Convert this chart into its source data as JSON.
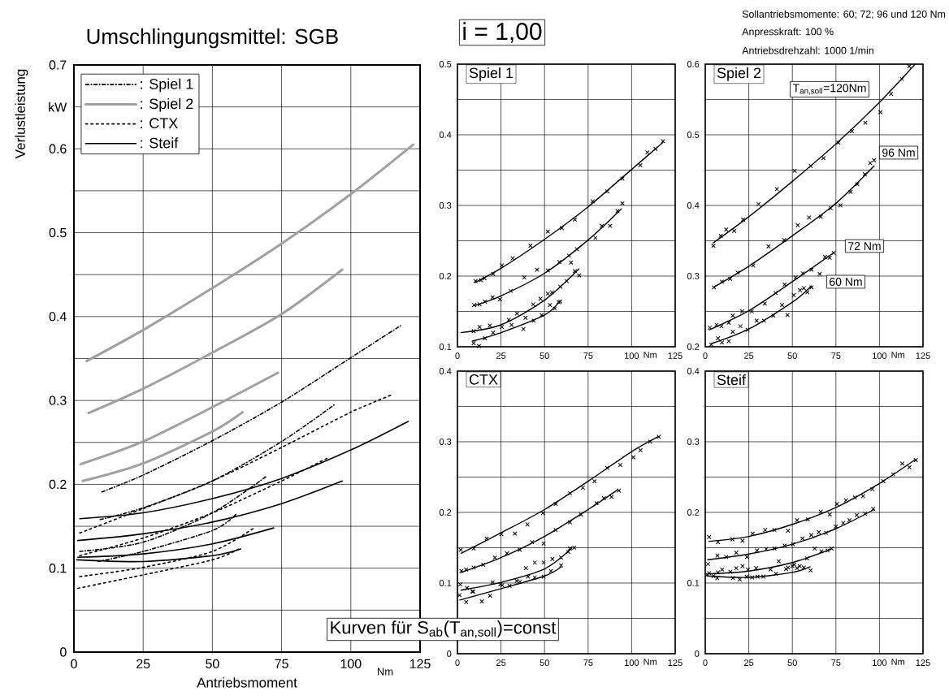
{
  "chart_data": [
    {
      "type": "line",
      "title": "Umschlingungsmittel: SGB",
      "xlabel": "Antriebsmoment",
      "ylabel": "Verlustleistung",
      "xlim": [
        0,
        125
      ],
      "xticks": [
        0,
        25,
        50,
        75,
        100,
        125
      ],
      "ylim": [
        0,
        0.7
      ],
      "yticks": [
        0,
        {
          "value": 0.05,
          "label": null
        },
        0.1,
        {
          "value": 0.15,
          "label": null
        },
        0.2,
        {
          "value": 0.25,
          "label": null
        },
        0.3,
        {
          "value": 0.35,
          "label": null
        },
        0.4,
        {
          "value": 0.45,
          "label": null
        },
        0.5,
        {
          "value": 0.55,
          "label": null
        },
        0.6,
        {
          "value": 0.65,
          "label": "kW"
        },
        0.7
      ],
      "grid": true,
      "legend": "top left",
      "annotations": [
        "i = 1,00",
        "Sollantriebsmomente: 60; 72; 96 und 120 Nm",
        "Anpresskraft: 100 %",
        "Antriebsdrehzahl: 1000 1/min",
        "Kurven für S$_{ab}$(T$_{an,soll}$)=const",
        "Nm"
      ],
      "series": [
        {
          "name": ": Spiel 1",
          "color": "#000000",
          "line_style": "dashdot",
          "x": [
            10.1,
            25,
            50,
            75,
            100,
            117.9
          ],
          "values": [
            0.191,
            0.211,
            0.252,
            0.298,
            0.351,
            0.389
          ]
        },
        {
          "color": "#000000",
          "line_style": "dashdot",
          "x": [
            9.5,
            25,
            50,
            75,
            94.1
          ],
          "values": [
            0.158,
            0.172,
            0.204,
            0.251,
            0.295
          ]
        },
        {
          "color": "#000000",
          "line_style": "dashdot",
          "x": [
            2.1,
            25,
            50,
            69.7
          ],
          "values": [
            0.12,
            0.131,
            0.166,
            0.21
          ]
        },
        {
          "color": "#000000",
          "line_style": "dashdot",
          "x": [
            8.7,
            25,
            50,
            58.5
          ],
          "values": [
            0.108,
            0.12,
            0.145,
            0.164
          ]
        },
        {
          "name": ": Spiel 2",
          "color": "#a0a0a0",
          "line_style": "solid",
          "x": [
            4.6,
            25,
            50,
            75,
            100,
            122.5
          ],
          "values": [
            0.347,
            0.384,
            0.434,
            0.487,
            0.546,
            0.605
          ]
        },
        {
          "color": "#a0a0a0",
          "line_style": "solid",
          "x": [
            5.3,
            25,
            50,
            75,
            96.9
          ],
          "values": [
            0.285,
            0.314,
            0.357,
            0.403,
            0.456
          ]
        },
        {
          "color": "#a0a0a0",
          "line_style": "solid",
          "x": [
            2.4,
            25,
            50,
            73.7
          ],
          "values": [
            0.224,
            0.251,
            0.292,
            0.333
          ]
        },
        {
          "color": "#a0a0a0",
          "line_style": "solid",
          "x": [
            3.2,
            25,
            50,
            60.9
          ],
          "values": [
            0.204,
            0.225,
            0.263,
            0.286
          ]
        },
        {
          "name": ": CTX",
          "color": "#000000",
          "line_style": "dotted",
          "x": [
            2.1,
            25,
            50,
            75,
            100,
            115
          ],
          "values": [
            0.142,
            0.171,
            0.204,
            0.244,
            0.286,
            0.307
          ]
        },
        {
          "color": "#000000",
          "line_style": "dotted",
          "x": [
            2.1,
            25,
            50,
            75,
            92
          ],
          "values": [
            0.115,
            0.136,
            0.166,
            0.204,
            0.232
          ]
        },
        {
          "color": "#000000",
          "line_style": "dotted",
          "x": [
            2.1,
            25,
            50,
            65.5
          ],
          "values": [
            0.09,
            0.101,
            0.12,
            0.149
          ]
        },
        {
          "color": "#000000",
          "line_style": "dotted",
          "x": [
            1.4,
            25,
            50,
            59.7
          ],
          "values": [
            0.076,
            0.092,
            0.11,
            0.123
          ]
        },
        {
          "name": ": Steif",
          "color": "#000000",
          "line_style": "solid",
          "x": [
            2.1,
            25,
            50,
            75,
            100,
            120.7
          ],
          "values": [
            0.159,
            0.166,
            0.183,
            0.207,
            0.241,
            0.275
          ]
        },
        {
          "color": "#000000",
          "line_style": "solid",
          "x": [
            1.4,
            25,
            50,
            75,
            96.9
          ],
          "values": [
            0.133,
            0.141,
            0.155,
            0.177,
            0.204
          ]
        },
        {
          "color": "#000000",
          "line_style": "solid",
          "x": [
            1.4,
            25,
            50,
            72.1
          ],
          "values": [
            0.113,
            0.117,
            0.129,
            0.148
          ]
        },
        {
          "color": "#000000",
          "line_style": "solid",
          "x": [
            1,
            25,
            50,
            60.2
          ],
          "values": [
            0.11,
            0.108,
            0.115,
            0.123
          ]
        }
      ]
    },
    {
      "type": "line",
      "title": "Spiel 1",
      "xlim": [
        0,
        125
      ],
      "xticks": [
        0,
        25,
        50,
        75,
        100,
        125
      ],
      "ylim": [
        0.1,
        0.5
      ],
      "yticks": [
        0.1,
        {
          "value": 0.15,
          "label": null
        },
        0.2,
        {
          "value": 0.25,
          "label": null
        },
        0.3,
        {
          "value": 0.35,
          "label": null
        },
        0.4,
        {
          "value": 0.45,
          "label": null
        },
        0.5
      ],
      "grid": true,
      "annotations": [
        "Nm"
      ],
      "series": [
        {
          "color": "#000000",
          "line_style": "solid",
          "x": [
            10.1,
            25,
            50,
            75,
            100,
            117.9
          ],
          "values": [
            0.191,
            0.211,
            0.252,
            0.298,
            0.351,
            0.389
          ]
        },
        {
          "color": "#000000",
          "line_style": "solid",
          "x": [
            9.5,
            25,
            50,
            75,
            94.1
          ],
          "values": [
            0.158,
            0.172,
            0.204,
            0.251,
            0.295
          ]
        },
        {
          "color": "#000000",
          "line_style": "solid",
          "x": [
            2.1,
            25,
            50,
            69.7
          ],
          "values": [
            0.12,
            0.131,
            0.166,
            0.21
          ]
        },
        {
          "color": "#000000",
          "line_style": "solid",
          "x": [
            8.7,
            25,
            50,
            58.5
          ],
          "values": [
            0.108,
            0.12,
            0.145,
            0.164
          ]
        },
        {
          "type": "scatter",
          "marker": "cross",
          "color": "#000000",
          "x": [
            10.4,
            13.5,
            15.5,
            20.5,
            25.5,
            31.7,
            41.9,
            51.9,
            59.9,
            67.4,
            77.6,
            86,
            94.7,
            105,
            109,
            113.7,
            118
          ],
          "values": [
            0.193,
            0.194,
            0.197,
            0.203,
            0.215,
            0.225,
            0.243,
            0.263,
            0.268,
            0.28,
            0.306,
            0.32,
            0.338,
            0.357,
            0.375,
            0.38,
            0.391
          ]
        },
        {
          "type": "scatter",
          "marker": "cross",
          "color": "#000000",
          "x": [
            9.6,
            12.7,
            15.8,
            20.2,
            24.4,
            30.6,
            38.4,
            45.7,
            51.9,
            58.5,
            64,
            65.2,
            68.6,
            79.2,
            82.9,
            87.6,
            91.9,
            94.7
          ],
          "values": [
            0.159,
            0.16,
            0.164,
            0.17,
            0.167,
            0.179,
            0.198,
            0.209,
            0.208,
            0.22,
            0.229,
            0.219,
            0.238,
            0.254,
            0.271,
            0.271,
            0.292,
            0.303
          ]
        },
        {
          "type": "scatter",
          "marker": "cross",
          "color": "#000000",
          "x": [
            9.3,
            12.7,
            18.6,
            25.5,
            29.5,
            34.2,
            43.5,
            47.7,
            51.9,
            54.3,
            59,
            62.7,
            67.4,
            69.9
          ],
          "values": [
            0.122,
            0.128,
            0.13,
            0.128,
            0.138,
            0.147,
            0.16,
            0.168,
            0.175,
            0.177,
            0.185,
            0.193,
            0.207,
            0.201
          ]
        },
        {
          "type": "scatter",
          "marker": "cross",
          "color": "#000000",
          "x": [
            9.3,
            12.4,
            15.8,
            20.5,
            31.1,
            37.9,
            39.1,
            43.8,
            48.4,
            53.1,
            55.9,
            58.1,
            59
          ],
          "values": [
            0.105,
            0.101,
            0.112,
            0.12,
            0.131,
            0.125,
            0.141,
            0.137,
            0.145,
            0.159,
            0.154,
            0.163,
            0.164
          ]
        }
      ]
    },
    {
      "type": "line",
      "title": "Spiel 2",
      "xlim": [
        0,
        125
      ],
      "xticks": [
        0,
        25,
        50,
        75,
        100,
        125
      ],
      "ylim": [
        0.2,
        0.6
      ],
      "yticks": [
        0.2,
        {
          "value": 0.25,
          "label": null
        },
        0.3,
        {
          "value": 0.35,
          "label": null
        },
        0.4,
        {
          "value": 0.45,
          "label": null
        },
        0.5,
        {
          "value": 0.55,
          "label": null
        },
        0.6
      ],
      "grid": true,
      "annotations": [
        "Nm",
        "T$_{an,soll}$=120Nm",
        "96 Nm",
        "72 Nm",
        "60 Nm"
      ],
      "series": [
        {
          "color": "#000000",
          "line_style": "solid",
          "x": [
            4.6,
            25,
            50,
            75,
            100,
            120.5
          ],
          "values": [
            0.347,
            0.384,
            0.434,
            0.487,
            0.546,
            0.6
          ]
        },
        {
          "color": "#000000",
          "line_style": "solid",
          "x": [
            5.3,
            25,
            50,
            75,
            96.9
          ],
          "values": [
            0.285,
            0.314,
            0.357,
            0.403,
            0.456
          ]
        },
        {
          "color": "#000000",
          "line_style": "solid",
          "x": [
            2.4,
            25,
            50,
            73.7
          ],
          "values": [
            0.224,
            0.251,
            0.292,
            0.333
          ]
        },
        {
          "color": "#000000",
          "line_style": "solid",
          "x": [
            3.2,
            25,
            50,
            60.9
          ],
          "values": [
            0.204,
            0.225,
            0.263,
            0.286
          ]
        },
        {
          "type": "scatter",
          "marker": "cross",
          "color": "#000000",
          "x": [
            4.7,
            8.9,
            12,
            16.6,
            21.7,
            30.6,
            41.1,
            51.3,
            60.6,
            67.9,
            76.4,
            84.2,
            91.9,
            100.5,
            106.7,
            112.9,
            117.1
          ],
          "values": [
            0.343,
            0.357,
            0.366,
            0.364,
            0.38,
            0.402,
            0.423,
            0.449,
            0.456,
            0.467,
            0.489,
            0.505,
            0.517,
            0.532,
            0.558,
            0.579,
            0.597
          ]
        },
        {
          "type": "scatter",
          "marker": "cross",
          "color": "#000000",
          "x": [
            5,
            9.6,
            14.3,
            18.6,
            27.5,
            36.3,
            45.3,
            53.1,
            59.6,
            66.3,
            72,
            77.6,
            83.4,
            87.3,
            91.6,
            94.7,
            96.9
          ],
          "values": [
            0.284,
            0.292,
            0.296,
            0.305,
            0.315,
            0.342,
            0.351,
            0.372,
            0.383,
            0.384,
            0.396,
            0.4,
            0.419,
            0.43,
            0.444,
            0.46,
            0.464
          ]
        },
        {
          "type": "scatter",
          "marker": "cross",
          "color": "#000000",
          "x": [
            2.6,
            6.5,
            9.3,
            13.5,
            15.8,
            21.2,
            26.7,
            34.2,
            40.4,
            45.6,
            51.9,
            56,
            61,
            65.7,
            68.8,
            71.4,
            73.7
          ],
          "values": [
            0.227,
            0.231,
            0.229,
            0.234,
            0.244,
            0.25,
            0.25,
            0.261,
            0.276,
            0.288,
            0.298,
            0.304,
            0.309,
            0.303,
            0.327,
            0.326,
            0.333
          ]
        },
        {
          "type": "scatter",
          "marker": "cross",
          "color": "#000000",
          "x": [
            3.4,
            7.3,
            9.6,
            13.5,
            15.8,
            20.2,
            24.3,
            29.5,
            33.7,
            39.1,
            44.1,
            47.2,
            50.8,
            54.4,
            56.6,
            58.6,
            61
          ],
          "values": [
            0.203,
            0.212,
            0.206,
            0.208,
            0.221,
            0.229,
            0.224,
            0.237,
            0.237,
            0.244,
            0.259,
            0.245,
            0.273,
            0.28,
            0.283,
            0.277,
            0.284
          ]
        }
      ]
    },
    {
      "type": "line",
      "title": "CTX",
      "xlim": [
        0,
        125
      ],
      "xticks": [
        0,
        25,
        50,
        75,
        100,
        125
      ],
      "ylim": [
        0,
        0.4
      ],
      "yticks": [
        0,
        {
          "value": 0.05,
          "label": null
        },
        0.1,
        {
          "value": 0.15,
          "label": null
        },
        0.2,
        {
          "value": 0.25,
          "label": null
        },
        0.3,
        {
          "value": 0.35,
          "label": null
        },
        0.4
      ],
      "grid": true,
      "annotations": [
        "Nm"
      ],
      "series": [
        {
          "color": "#000000",
          "line_style": "solid",
          "x": [
            2.1,
            25,
            50,
            75,
            100,
            115
          ],
          "values": [
            0.142,
            0.171,
            0.204,
            0.244,
            0.286,
            0.307
          ]
        },
        {
          "color": "#000000",
          "line_style": "solid",
          "x": [
            2.1,
            25,
            50,
            75,
            92
          ],
          "values": [
            0.115,
            0.136,
            0.166,
            0.204,
            0.232
          ]
        },
        {
          "color": "#000000",
          "line_style": "solid",
          "x": [
            2.1,
            25,
            50,
            65.5
          ],
          "values": [
            0.09,
            0.101,
            0.12,
            0.149
          ]
        },
        {
          "color": "#000000",
          "line_style": "solid",
          "x": [
            1.4,
            25,
            50,
            59.7
          ],
          "values": [
            0.076,
            0.092,
            0.11,
            0.123
          ]
        },
        {
          "type": "scatter",
          "marker": "cross",
          "color": "#000000",
          "x": [
            1.9,
            9.3,
            16.8,
            25.2,
            33,
            40.2,
            49.1,
            56.4,
            64.6,
            72,
            78.7,
            86,
            93.5,
            101,
            105.1,
            110.6,
            115.6
          ],
          "values": [
            0.147,
            0.149,
            0.163,
            0.169,
            0.17,
            0.183,
            0.199,
            0.212,
            0.227,
            0.235,
            0.244,
            0.263,
            0.267,
            0.278,
            0.288,
            0.3,
            0.307
          ]
        },
        {
          "type": "scatter",
          "marker": "cross",
          "color": "#000000",
          "x": [
            2.3,
            5,
            9.3,
            14.8,
            21.5,
            28.5,
            35.8,
            42.8,
            49.5,
            56.4,
            64.6,
            70.9,
            79.8,
            84.1,
            88.5,
            92.7
          ],
          "values": [
            0.117,
            0.119,
            0.122,
            0.126,
            0.136,
            0.142,
            0.147,
            0.158,
            0.156,
            0.175,
            0.186,
            0.197,
            0.213,
            0.22,
            0.222,
            0.231
          ]
        },
        {
          "type": "scatter",
          "marker": "cross",
          "color": "#000000",
          "x": [
            1.6,
            5.5,
            9,
            20.2,
            24.6,
            34,
            39.3,
            44.4,
            49.5,
            54.5,
            59.5,
            63.6,
            64.6,
            67
          ],
          "values": [
            0.098,
            0.093,
            0.088,
            0.101,
            0.098,
            0.103,
            0.121,
            0.129,
            0.129,
            0.134,
            0.136,
            0.144,
            0.149,
            0.15
          ]
        },
        {
          "type": "scatter",
          "marker": "cross",
          "color": "#000000",
          "x": [
            1.2,
            5,
            8.6,
            14,
            18.7,
            25.7,
            29.9,
            35.8,
            40.5,
            44.4,
            49.5,
            53.7,
            59.5
          ],
          "values": [
            0.083,
            0.073,
            0.088,
            0.074,
            0.082,
            0.097,
            0.096,
            0.102,
            0.109,
            0.108,
            0.109,
            0.117,
            0.125
          ]
        }
      ]
    },
    {
      "type": "line",
      "title": "Steif",
      "xlim": [
        0,
        125
      ],
      "xticks": [
        0,
        25,
        50,
        75,
        100,
        125
      ],
      "ylim": [
        0,
        0.4
      ],
      "yticks": [
        0,
        {
          "value": 0.05,
          "label": null
        },
        0.1,
        {
          "value": 0.15,
          "label": null
        },
        0.2,
        {
          "value": 0.25,
          "label": null
        },
        0.3,
        {
          "value": 0.35,
          "label": null
        },
        0.4
      ],
      "grid": true,
      "annotations": [
        "Nm"
      ],
      "series": [
        {
          "color": "#000000",
          "line_style": "solid",
          "x": [
            2.1,
            25,
            50,
            75,
            100,
            120.7
          ],
          "values": [
            0.159,
            0.166,
            0.183,
            0.207,
            0.241,
            0.275
          ]
        },
        {
          "color": "#000000",
          "line_style": "solid",
          "x": [
            1.4,
            25,
            50,
            75,
            96.9
          ],
          "values": [
            0.133,
            0.141,
            0.155,
            0.177,
            0.204
          ]
        },
        {
          "color": "#000000",
          "line_style": "solid",
          "x": [
            1.4,
            25,
            50,
            72.1
          ],
          "values": [
            0.113,
            0.117,
            0.129,
            0.148
          ]
        },
        {
          "color": "#000000",
          "line_style": "solid",
          "x": [
            1,
            25,
            50,
            60.2
          ],
          "values": [
            0.11,
            0.108,
            0.115,
            0.123
          ]
        },
        {
          "type": "scatter",
          "marker": "cross",
          "color": "#000000",
          "x": [
            2.2,
            7.3,
            15.6,
            21.4,
            27.2,
            34.4,
            39.7,
            47.5,
            52.7,
            58.9,
            66.3,
            71.5,
            75.6,
            80.8,
            85.9,
            90.6,
            95.9,
            102.2,
            107.8,
            113.1,
            117.2,
            120.9
          ],
          "values": [
            0.165,
            0.158,
            0.162,
            0.16,
            0.17,
            0.175,
            0.175,
            0.174,
            0.189,
            0.19,
            0.201,
            0.197,
            0.212,
            0.217,
            0.221,
            0.223,
            0.233,
            0.244,
            0.254,
            0.269,
            0.264,
            0.274
          ]
        },
        {
          "type": "scatter",
          "marker": "cross",
          "color": "#000000",
          "x": [
            1.6,
            7,
            12,
            17.8,
            24,
            29.7,
            35,
            39.7,
            45.6,
            50.3,
            55.8,
            60.9,
            65.2,
            69.4,
            75,
            79.2,
            82.8,
            87,
            91.7,
            96.4
          ],
          "values": [
            0.127,
            0.139,
            0.137,
            0.143,
            0.137,
            0.146,
            0.148,
            0.149,
            0.153,
            0.155,
            0.163,
            0.168,
            0.172,
            0.171,
            0.18,
            0.185,
            0.189,
            0.196,
            0.198,
            0.205
          ]
        },
        {
          "type": "scatter",
          "marker": "cross",
          "color": "#000000",
          "x": [
            2.2,
            7.3,
            9.7,
            14.4,
            17.8,
            21.4,
            24.5,
            29.2,
            37.5,
            42.2,
            47.5,
            51.1,
            54.2,
            58.4,
            62.8,
            66.7,
            70.3,
            72.5
          ],
          "values": [
            0.114,
            0.115,
            0.119,
            0.116,
            0.121,
            0.124,
            0.119,
            0.121,
            0.119,
            0.131,
            0.122,
            0.126,
            0.124,
            0.135,
            0.149,
            0.145,
            0.146,
            0.149
          ]
        },
        {
          "type": "scatter",
          "marker": "cross",
          "color": "#000000",
          "x": [
            1.1,
            4.7,
            6.9,
            15.9,
            19.8,
            23.8,
            26.9,
            30,
            33.4,
            40.6,
            46.4,
            50,
            52.7,
            56.6,
            60.5
          ],
          "values": [
            0.112,
            0.11,
            0.107,
            0.107,
            0.105,
            0.109,
            0.108,
            0.109,
            0.109,
            0.113,
            0.12,
            0.124,
            0.121,
            0.122,
            0.118
          ]
        }
      ]
    }
  ]
}
